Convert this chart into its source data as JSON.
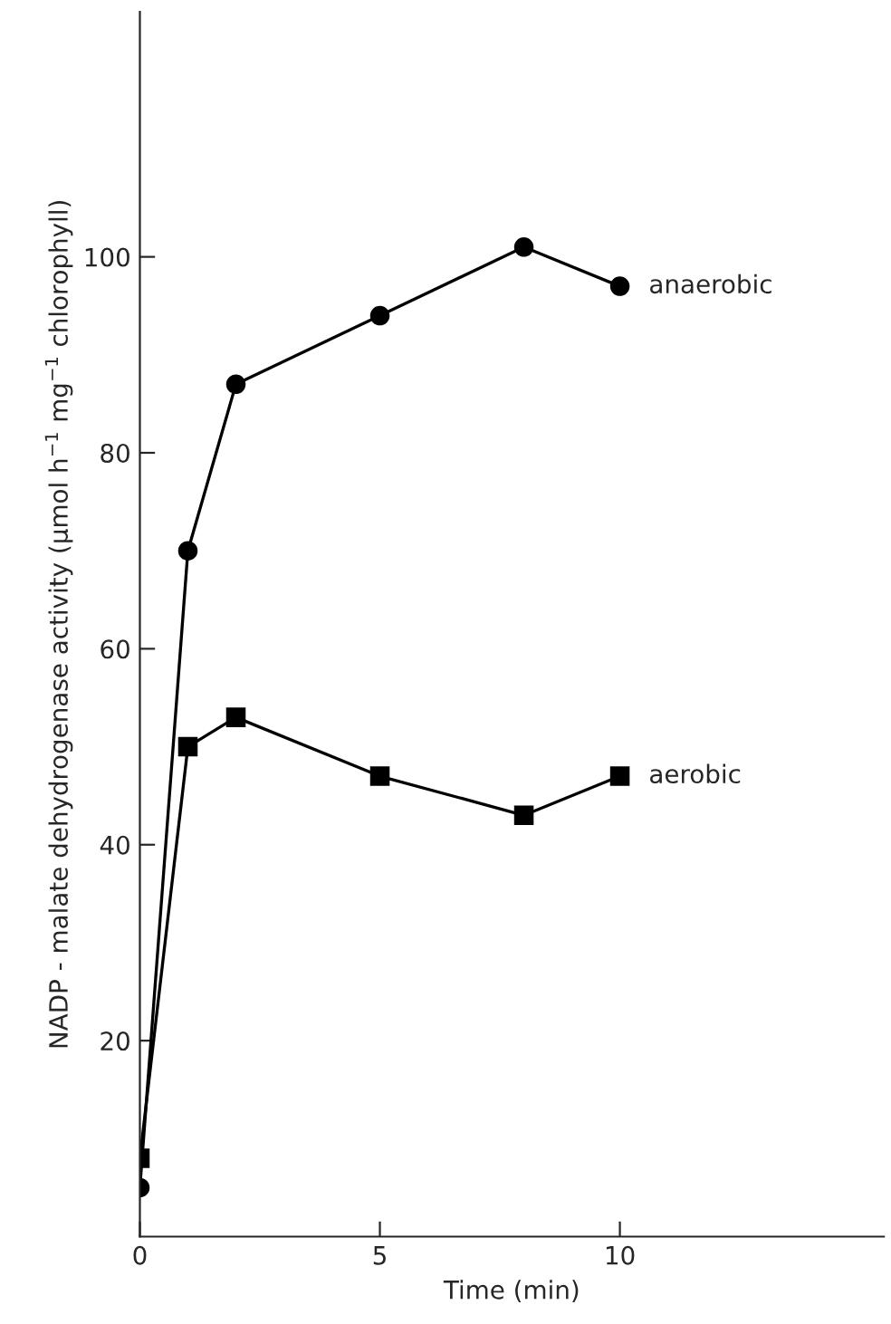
{
  "chart_data": {
    "type": "line",
    "xlabel": "Time (min)",
    "ylabel": "NADP - malate dehydrogenase activity (μmol h$^{−1}$ mg$^{−1}$ chlorophyll)",
    "xlim": [
      0,
      15.5
    ],
    "xticks": [
      0,
      5,
      10
    ],
    "ylim": [
      0,
      125
    ],
    "yticks": [
      20,
      40,
      60,
      80,
      100
    ],
    "grid": false,
    "legend": false,
    "line_style": "solid",
    "series": [
      {
        "name": "anaerobic",
        "color": "#000000",
        "marker": "circle",
        "x": [
          0,
          1,
          2,
          5,
          8,
          10
        ],
        "values": [
          5,
          70,
          87,
          94,
          101,
          97
        ]
      },
      {
        "name": "aerobic",
        "color": "#000000",
        "marker": "square",
        "x": [
          0,
          1,
          2,
          5,
          8,
          10
        ],
        "values": [
          8,
          50,
          53,
          47,
          43,
          47
        ]
      }
    ]
  }
}
